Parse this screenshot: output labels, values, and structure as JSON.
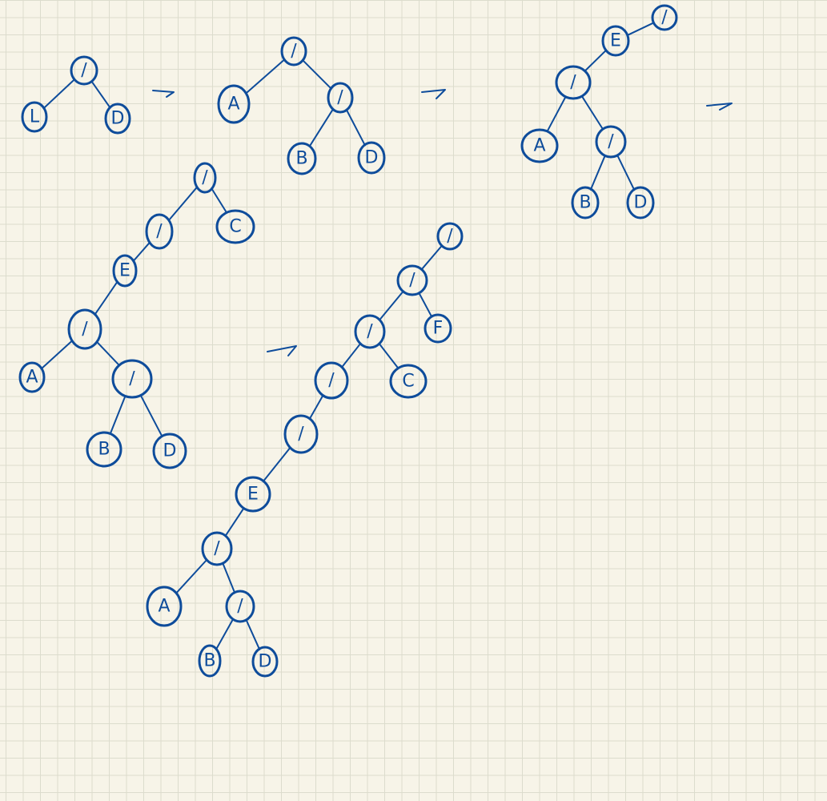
{
  "ink_color": "#0e4c9b",
  "paper_color": "#f7f4e8",
  "grid_color": "#dcdccd",
  "trees": [
    {
      "name": "tree-1",
      "nodes": [
        {
          "id": "t1-root",
          "label": "/"
        },
        {
          "id": "t1-l",
          "label": "L"
        },
        {
          "id": "t1-r",
          "label": "D"
        }
      ],
      "edges": [
        [
          "t1-root",
          "t1-l"
        ],
        [
          "t1-root",
          "t1-r"
        ]
      ]
    },
    {
      "name": "tree-2",
      "nodes": [
        {
          "id": "t2-root",
          "label": "/"
        },
        {
          "id": "t2-a",
          "label": "A"
        },
        {
          "id": "t2-div",
          "label": "/"
        },
        {
          "id": "t2-b",
          "label": "B"
        },
        {
          "id": "t2-d",
          "label": "D"
        }
      ],
      "edges": [
        [
          "t2-root",
          "t2-a"
        ],
        [
          "t2-root",
          "t2-div"
        ],
        [
          "t2-div",
          "t2-b"
        ],
        [
          "t2-div",
          "t2-d"
        ]
      ]
    },
    {
      "name": "tree-3",
      "nodes": [
        {
          "id": "t3-root",
          "label": "/"
        },
        {
          "id": "t3-e",
          "label": "E"
        },
        {
          "id": "t3-div1",
          "label": "/"
        },
        {
          "id": "t3-a",
          "label": "A"
        },
        {
          "id": "t3-div2",
          "label": "/"
        },
        {
          "id": "t3-b",
          "label": "B"
        },
        {
          "id": "t3-d",
          "label": "D"
        }
      ],
      "edges": [
        [
          "t3-root",
          "t3-e"
        ],
        [
          "t3-e",
          "t3-div1"
        ],
        [
          "t3-div1",
          "t3-a"
        ],
        [
          "t3-div1",
          "t3-div2"
        ],
        [
          "t3-div2",
          "t3-b"
        ],
        [
          "t3-div2",
          "t3-d"
        ]
      ]
    },
    {
      "name": "tree-4",
      "nodes": [
        {
          "id": "t4-root",
          "label": "/"
        },
        {
          "id": "t4-c",
          "label": "C"
        },
        {
          "id": "t4-div1",
          "label": "/"
        },
        {
          "id": "t4-e",
          "label": "E"
        },
        {
          "id": "t4-div2",
          "label": "/"
        },
        {
          "id": "t4-a",
          "label": "A"
        },
        {
          "id": "t4-div3",
          "label": "/"
        },
        {
          "id": "t4-b",
          "label": "B"
        },
        {
          "id": "t4-d",
          "label": "D"
        }
      ],
      "edges": [
        [
          "t4-root",
          "t4-c"
        ],
        [
          "t4-root",
          "t4-div1"
        ],
        [
          "t4-div1",
          "t4-e"
        ],
        [
          "t4-e",
          "t4-div2"
        ],
        [
          "t4-div2",
          "t4-a"
        ],
        [
          "t4-div2",
          "t4-div3"
        ],
        [
          "t4-div3",
          "t4-b"
        ],
        [
          "t4-div3",
          "t4-d"
        ]
      ]
    },
    {
      "name": "tree-5",
      "nodes": [
        {
          "id": "t5-root",
          "label": "/"
        },
        {
          "id": "t5-div1",
          "label": "/"
        },
        {
          "id": "t5-f",
          "label": "F"
        },
        {
          "id": "t5-div2",
          "label": "/"
        },
        {
          "id": "t5-c",
          "label": "C"
        },
        {
          "id": "t5-div3",
          "label": "/"
        },
        {
          "id": "t5-div4",
          "label": "/"
        },
        {
          "id": "t5-e",
          "label": "E"
        },
        {
          "id": "t5-div5",
          "label": "/"
        },
        {
          "id": "t5-a",
          "label": "A"
        },
        {
          "id": "t5-div6",
          "label": "/"
        },
        {
          "id": "t5-b",
          "label": "B"
        },
        {
          "id": "t5-d",
          "label": "D"
        }
      ],
      "edges": [
        [
          "t5-root",
          "t5-div1"
        ],
        [
          "t5-div1",
          "t5-f"
        ],
        [
          "t5-div1",
          "t5-div2"
        ],
        [
          "t5-div2",
          "t5-c"
        ],
        [
          "t5-div2",
          "t5-div3"
        ],
        [
          "t5-div3",
          "t5-div4"
        ],
        [
          "t5-div4",
          "t5-e"
        ],
        [
          "t5-e",
          "t5-div5"
        ],
        [
          "t5-div5",
          "t5-a"
        ],
        [
          "t5-div5",
          "t5-div6"
        ],
        [
          "t5-div6",
          "t5-b"
        ],
        [
          "t5-div6",
          "t5-d"
        ]
      ]
    }
  ],
  "arrows": [
    {
      "id": "arrow-1"
    },
    {
      "id": "arrow-2"
    },
    {
      "id": "arrow-3"
    },
    {
      "id": "arrow-4"
    }
  ]
}
